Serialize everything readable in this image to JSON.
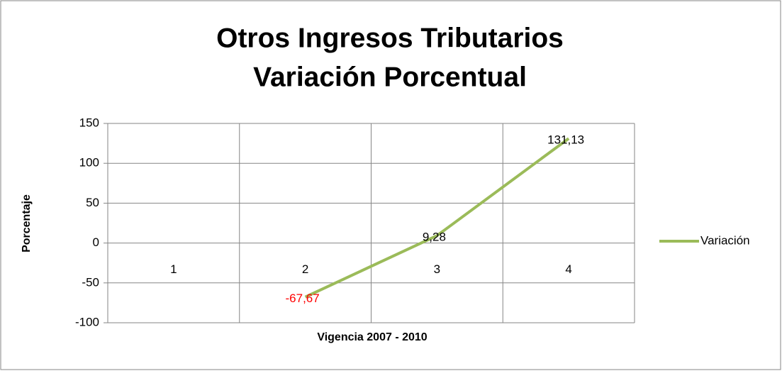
{
  "chart_data": {
    "type": "line",
    "title": [
      "Otros Ingresos Tributarios",
      "Variación Porcentual"
    ],
    "x_label": "Vigencia 2007 - 2010",
    "y_label": "Porcentaje",
    "categories": [
      "1",
      "2",
      "3",
      "4"
    ],
    "series": [
      {
        "name": "Variación",
        "color": "#9bbb59",
        "values": [
          null,
          -67.67,
          9.28,
          131.13
        ],
        "value_labels": [
          null,
          "-67,67",
          "9,28",
          "131,13"
        ],
        "value_label_colors": [
          null,
          "#ff0000",
          "#000000",
          "#000000"
        ]
      }
    ],
    "ylim": [
      -100,
      150
    ],
    "yticks": [
      -100,
      -50,
      0,
      50,
      100,
      150
    ],
    "grid": true,
    "legend": "right"
  }
}
